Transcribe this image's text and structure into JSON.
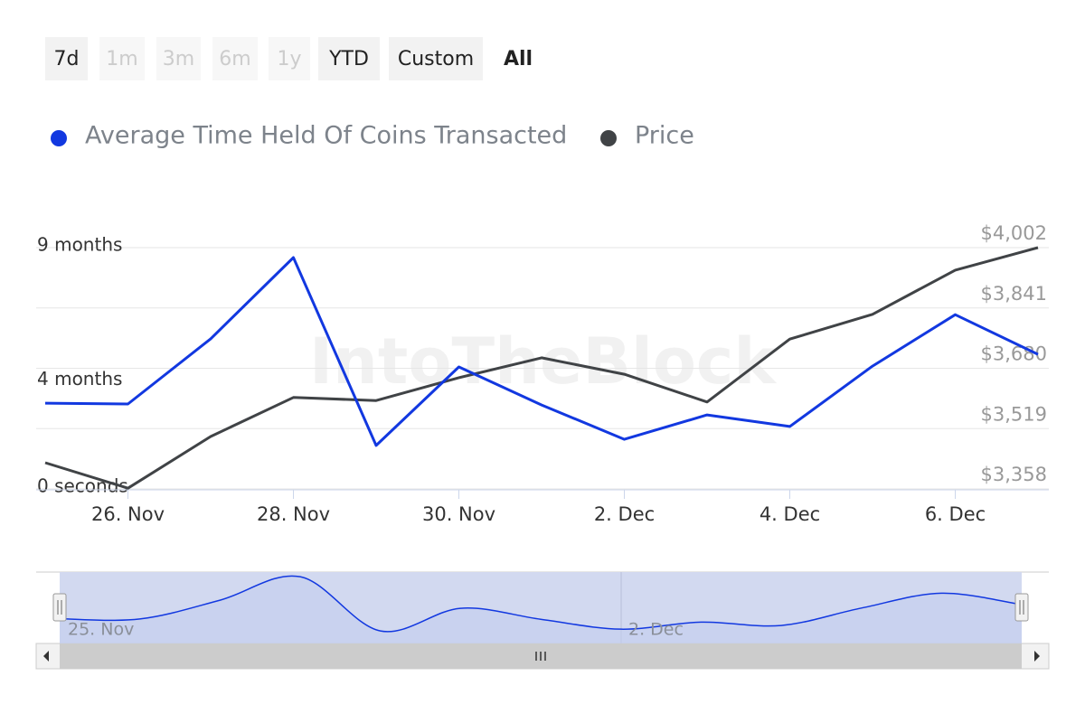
{
  "range_selector": {
    "buttons": [
      {
        "label": "7d",
        "disabled": false,
        "selected": false
      },
      {
        "label": "1m",
        "disabled": true,
        "selected": false
      },
      {
        "label": "3m",
        "disabled": true,
        "selected": false
      },
      {
        "label": "6m",
        "disabled": true,
        "selected": false
      },
      {
        "label": "1y",
        "disabled": true,
        "selected": false
      },
      {
        "label": "YTD",
        "disabled": false,
        "selected": false
      },
      {
        "label": "Custom",
        "disabled": false,
        "selected": false
      },
      {
        "label": "All",
        "disabled": false,
        "selected": true
      }
    ]
  },
  "chart_data": {
    "type": "line",
    "watermark": "IntoTheBlock",
    "legend": "top-left",
    "grid": true,
    "categories": [
      null,
      "26. Nov",
      null,
      "28. Nov",
      null,
      "30. Nov",
      null,
      "2. Dec",
      null,
      "4. Dec",
      null,
      "6. Dec",
      null
    ],
    "series": [
      {
        "name": "Average Time Held Of Coins Transacted",
        "color": "#1238e0",
        "axis": "y",
        "values": [
          3.2,
          3.17,
          5.6,
          8.63,
          1.62,
          4.55,
          3.13,
          1.85,
          2.76,
          2.33,
          4.58,
          6.5,
          5.02
        ]
      },
      {
        "name": "Price",
        "color": "#404346",
        "axis": "y2",
        "values": [
          3428,
          3360,
          3498,
          3602,
          3594,
          3655,
          3708,
          3664,
          3590,
          3758,
          3824,
          3942,
          4002
        ]
      }
    ],
    "ylim": [
      0,
      9
    ],
    "yticks": [
      {
        "value": 0,
        "label": "0 seconds"
      },
      {
        "value": 4,
        "label": "4 months"
      },
      {
        "value": 9,
        "label": "9 months"
      }
    ],
    "y2lim": [
      3358,
      4002
    ],
    "y2ticks": [
      {
        "value": 3358,
        "label": "$3,358"
      },
      {
        "value": 3519,
        "label": "$3,519"
      },
      {
        "value": 3680,
        "label": "$3,680"
      },
      {
        "value": 3841,
        "label": "$3,841"
      },
      {
        "value": 4002,
        "label": "$4,002"
      }
    ],
    "navigator": {
      "labels": [
        "25. Nov",
        "2. Dec"
      ]
    }
  }
}
